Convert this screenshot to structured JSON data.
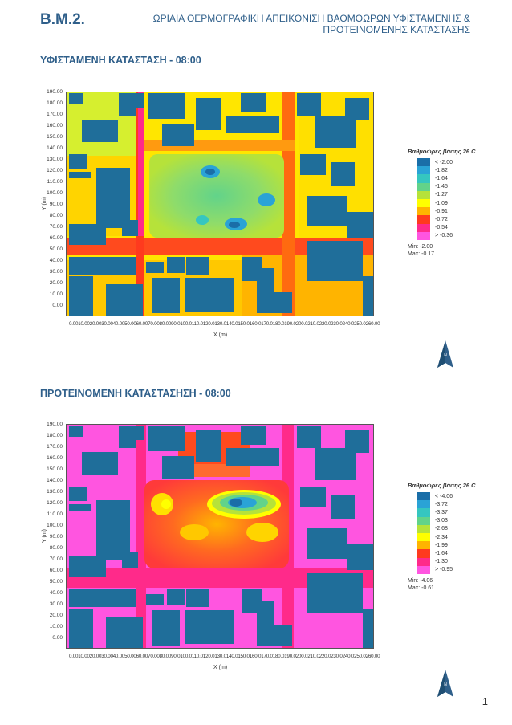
{
  "header": {
    "code": "B.M.2.",
    "title_line1": "ΩΡΙΑΙΑ ΘΕΡΜΟΓΡΑΦΙΚΗ ΑΠΕΙΚΟΝΙΣΗ ΒΑΘΜΟΩΡΩΝ ΥΦΙΣΤΑΜΕΝΗΣ &",
    "title_line2": "ΠΡΟΤΕΙΝΟΜΕΝΗΣ ΚΑΤΑΣΤΑΣΗΣ"
  },
  "sections": [
    {
      "title": "ΥΦΙΣΤΑΜΕΝΗ ΚΑΤΑΣΤΑΣΗ - 08:00",
      "ylabel": "Y (m)",
      "xlabel": "X (m)",
      "legend_title": "Βαθμοώρες βάσης 26 C",
      "legend_labels": [
        "< -2.00",
        "-1.82",
        "-1.64",
        "-1.45",
        "-1.27",
        "-1.09",
        "-0.91",
        "-0.72",
        "-0.54",
        "> -0.36"
      ],
      "legend_colors": [
        "#1a6ea8",
        "#2aa3d6",
        "#35c6c0",
        "#62d38a",
        "#b6e23a",
        "#ffff00",
        "#ffb400",
        "#ff3a1e",
        "#ff2a8a",
        "#ff55e0"
      ],
      "min_label": "Min: -2.00",
      "max_label": "Max: -0.17"
    },
    {
      "title": "ΠΡΟΤΕΙΝΟΜΕΝΗ ΚΑΤΑΣΤΑΣΗΣΗ - 08:00",
      "ylabel": "Y (m)",
      "xlabel": "X (m)",
      "legend_title": "Βαθμοώρες βάσης 26 C",
      "legend_labels": [
        "< -4.06",
        "-3.72",
        "-3.37",
        "-3.03",
        "-2.68",
        "-2.34",
        "-1.99",
        "-1.64",
        "-1.30",
        "> -0.95"
      ],
      "legend_colors": [
        "#1a6ea8",
        "#2aa3d6",
        "#35c6c0",
        "#62d38a",
        "#b6e23a",
        "#ffff00",
        "#ffb400",
        "#ff3a1e",
        "#ff2a8a",
        "#ff55e0"
      ],
      "min_label": "Min: -4.06",
      "max_label": "Max: -0.61"
    }
  ],
  "y_ticks": [
    "190.00",
    "180.00",
    "170.00",
    "160.00",
    "150.00",
    "140.00",
    "130.00",
    "120.00",
    "110.00",
    "100.00",
    "90.00",
    "80.00",
    "70.00",
    "60.00",
    "50.00",
    "40.00",
    "30.00",
    "20.00",
    "10.00",
    "0.00"
  ],
  "x_ticks_text": "0.0010.0020.0030.0040.0050.0060.0070.0080.0090.0100.0110.0120.0130.0140.0150.0160.0170.0180.0190.0200.0210.0220.0230.0240.0250.0260.00",
  "north_label": "N",
  "page_number": "1",
  "colors": {
    "building": "#1f6e9a",
    "heading": "#2f5f8a"
  }
}
